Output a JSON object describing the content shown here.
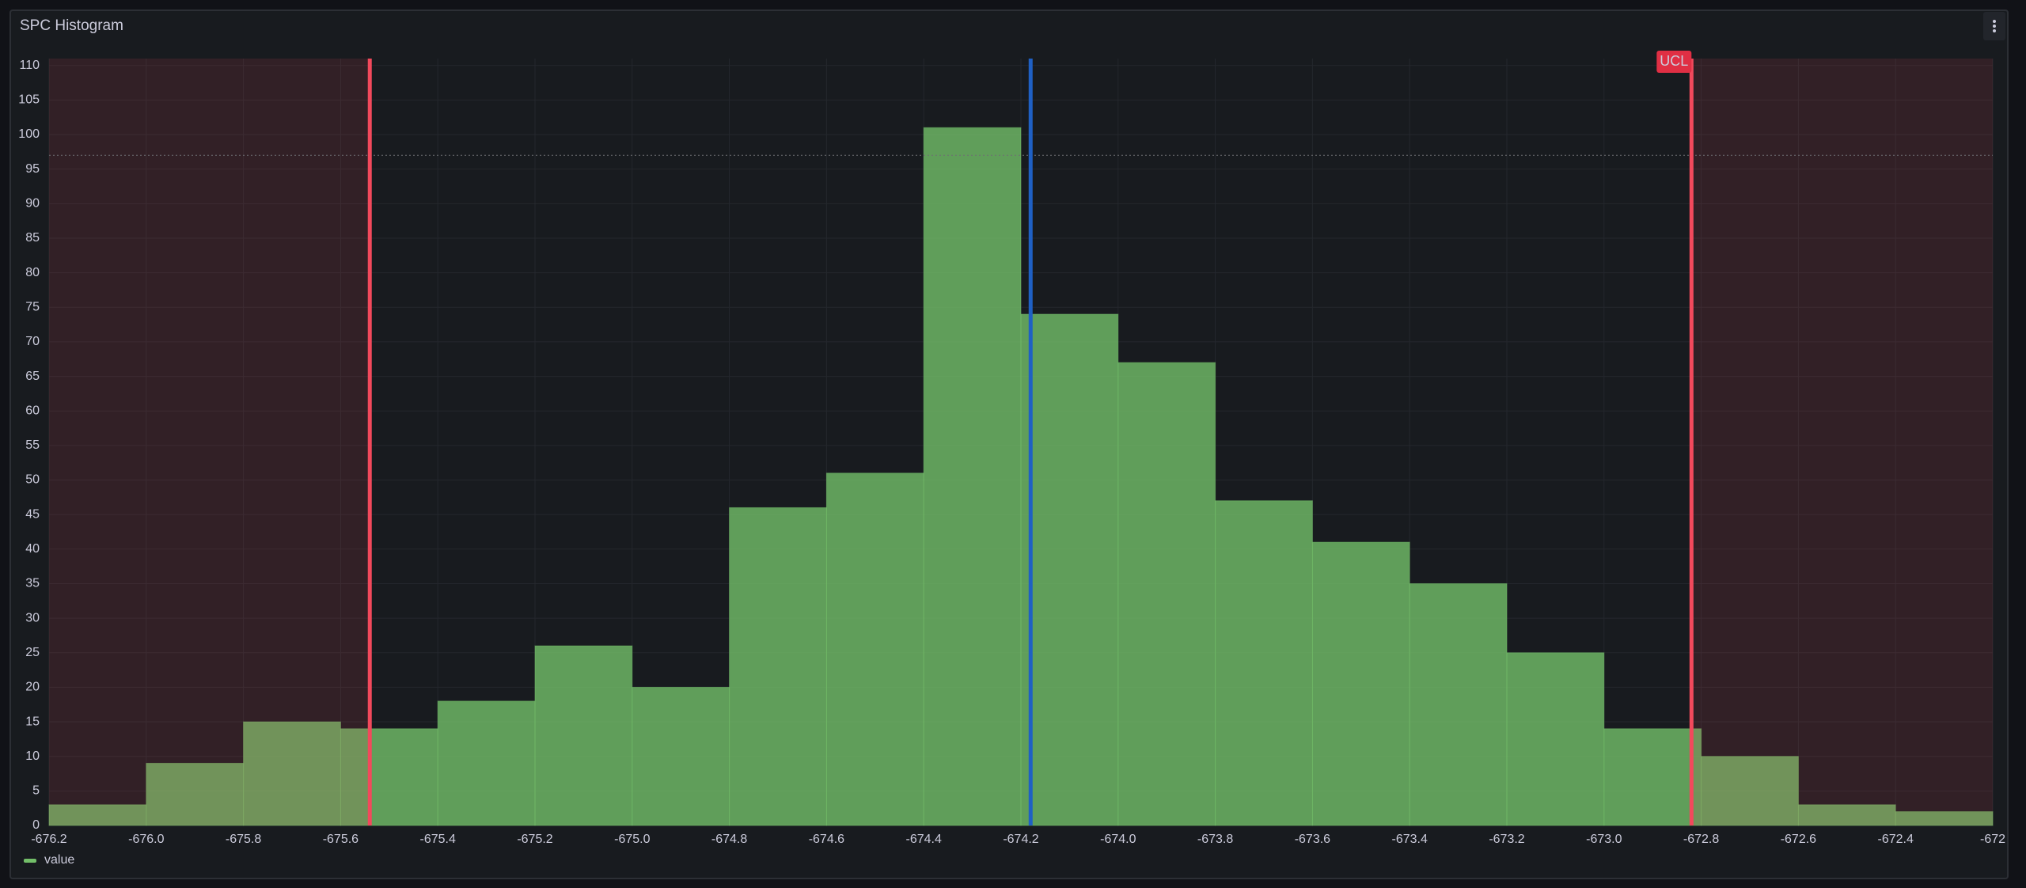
{
  "chart_data": {
    "type": "histogram",
    "title": "SPC Histogram",
    "bins": [
      -676.2,
      -676.0,
      -675.8,
      -675.6,
      -675.4,
      -675.2,
      -675.0,
      -674.8,
      -674.6,
      -674.4,
      -674.2,
      -674.0,
      -673.8,
      -673.6,
      -673.4,
      -673.2,
      -673.0,
      -672.8,
      -672.6,
      -672.4,
      -672.2
    ],
    "series": [
      {
        "name": "value",
        "color": "#73bf69",
        "values": [
          3,
          9,
          15,
          14,
          18,
          26,
          20,
          46,
          51,
          101,
          74,
          67,
          47,
          41,
          35,
          25,
          14,
          10,
          3,
          2
        ]
      }
    ],
    "xlim": [
      -676.2,
      -672.2
    ],
    "ylim": [
      0,
      111
    ],
    "xticks": [
      -676.2,
      {
        "value": -676,
        "label": "-676.0"
      },
      -675.8,
      -675.6,
      -675.4,
      -675.2,
      {
        "value": -675,
        "label": "-675.0"
      },
      -674.8,
      -674.6,
      -674.4,
      -674.2,
      {
        "value": -674,
        "label": "-674.0"
      },
      -673.8,
      -673.6,
      -673.4,
      -673.2,
      {
        "value": -673,
        "label": "-673.0"
      },
      -672.8,
      -672.6,
      -672.4,
      {
        "value": -672.2,
        "label": "-672"
      }
    ],
    "yticks": [
      0,
      5,
      10,
      15,
      20,
      25,
      30,
      35,
      40,
      45,
      50,
      55,
      60,
      65,
      70,
      75,
      80,
      85,
      90,
      95,
      100,
      105,
      110
    ],
    "grid": true,
    "lcl": -675.54,
    "mean": -674.18,
    "ucl": -672.82,
    "ucl_label": "UCL",
    "reference_line": 97
  }
}
